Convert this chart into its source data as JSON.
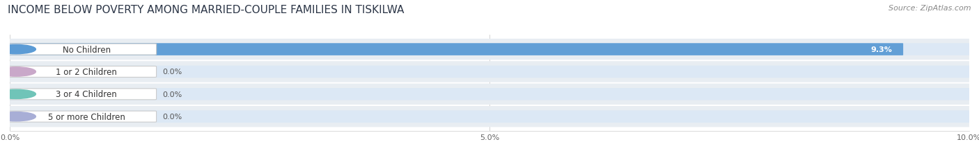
{
  "title": "INCOME BELOW POVERTY AMONG MARRIED-COUPLE FAMILIES IN TISKILWA",
  "source": "Source: ZipAtlas.com",
  "categories": [
    "No Children",
    "1 or 2 Children",
    "3 or 4 Children",
    "5 or more Children"
  ],
  "values": [
    9.3,
    0.0,
    0.0,
    0.0
  ],
  "bar_colors": [
    "#5b9bd5",
    "#c9a8c9",
    "#70c4b8",
    "#a8aed6"
  ],
  "background_color": "#ffffff",
  "row_bg_color": "#e8edf2",
  "bar_bg_color": "#dce8f5",
  "xlim": [
    0,
    10.0
  ],
  "xtick_labels": [
    "0.0%",
    "5.0%",
    "10.0%"
  ],
  "xtick_vals": [
    0.0,
    5.0,
    10.0
  ],
  "title_fontsize": 11,
  "source_fontsize": 8,
  "bar_height": 0.52,
  "label_fontsize": 8.5,
  "value_fontsize": 8
}
